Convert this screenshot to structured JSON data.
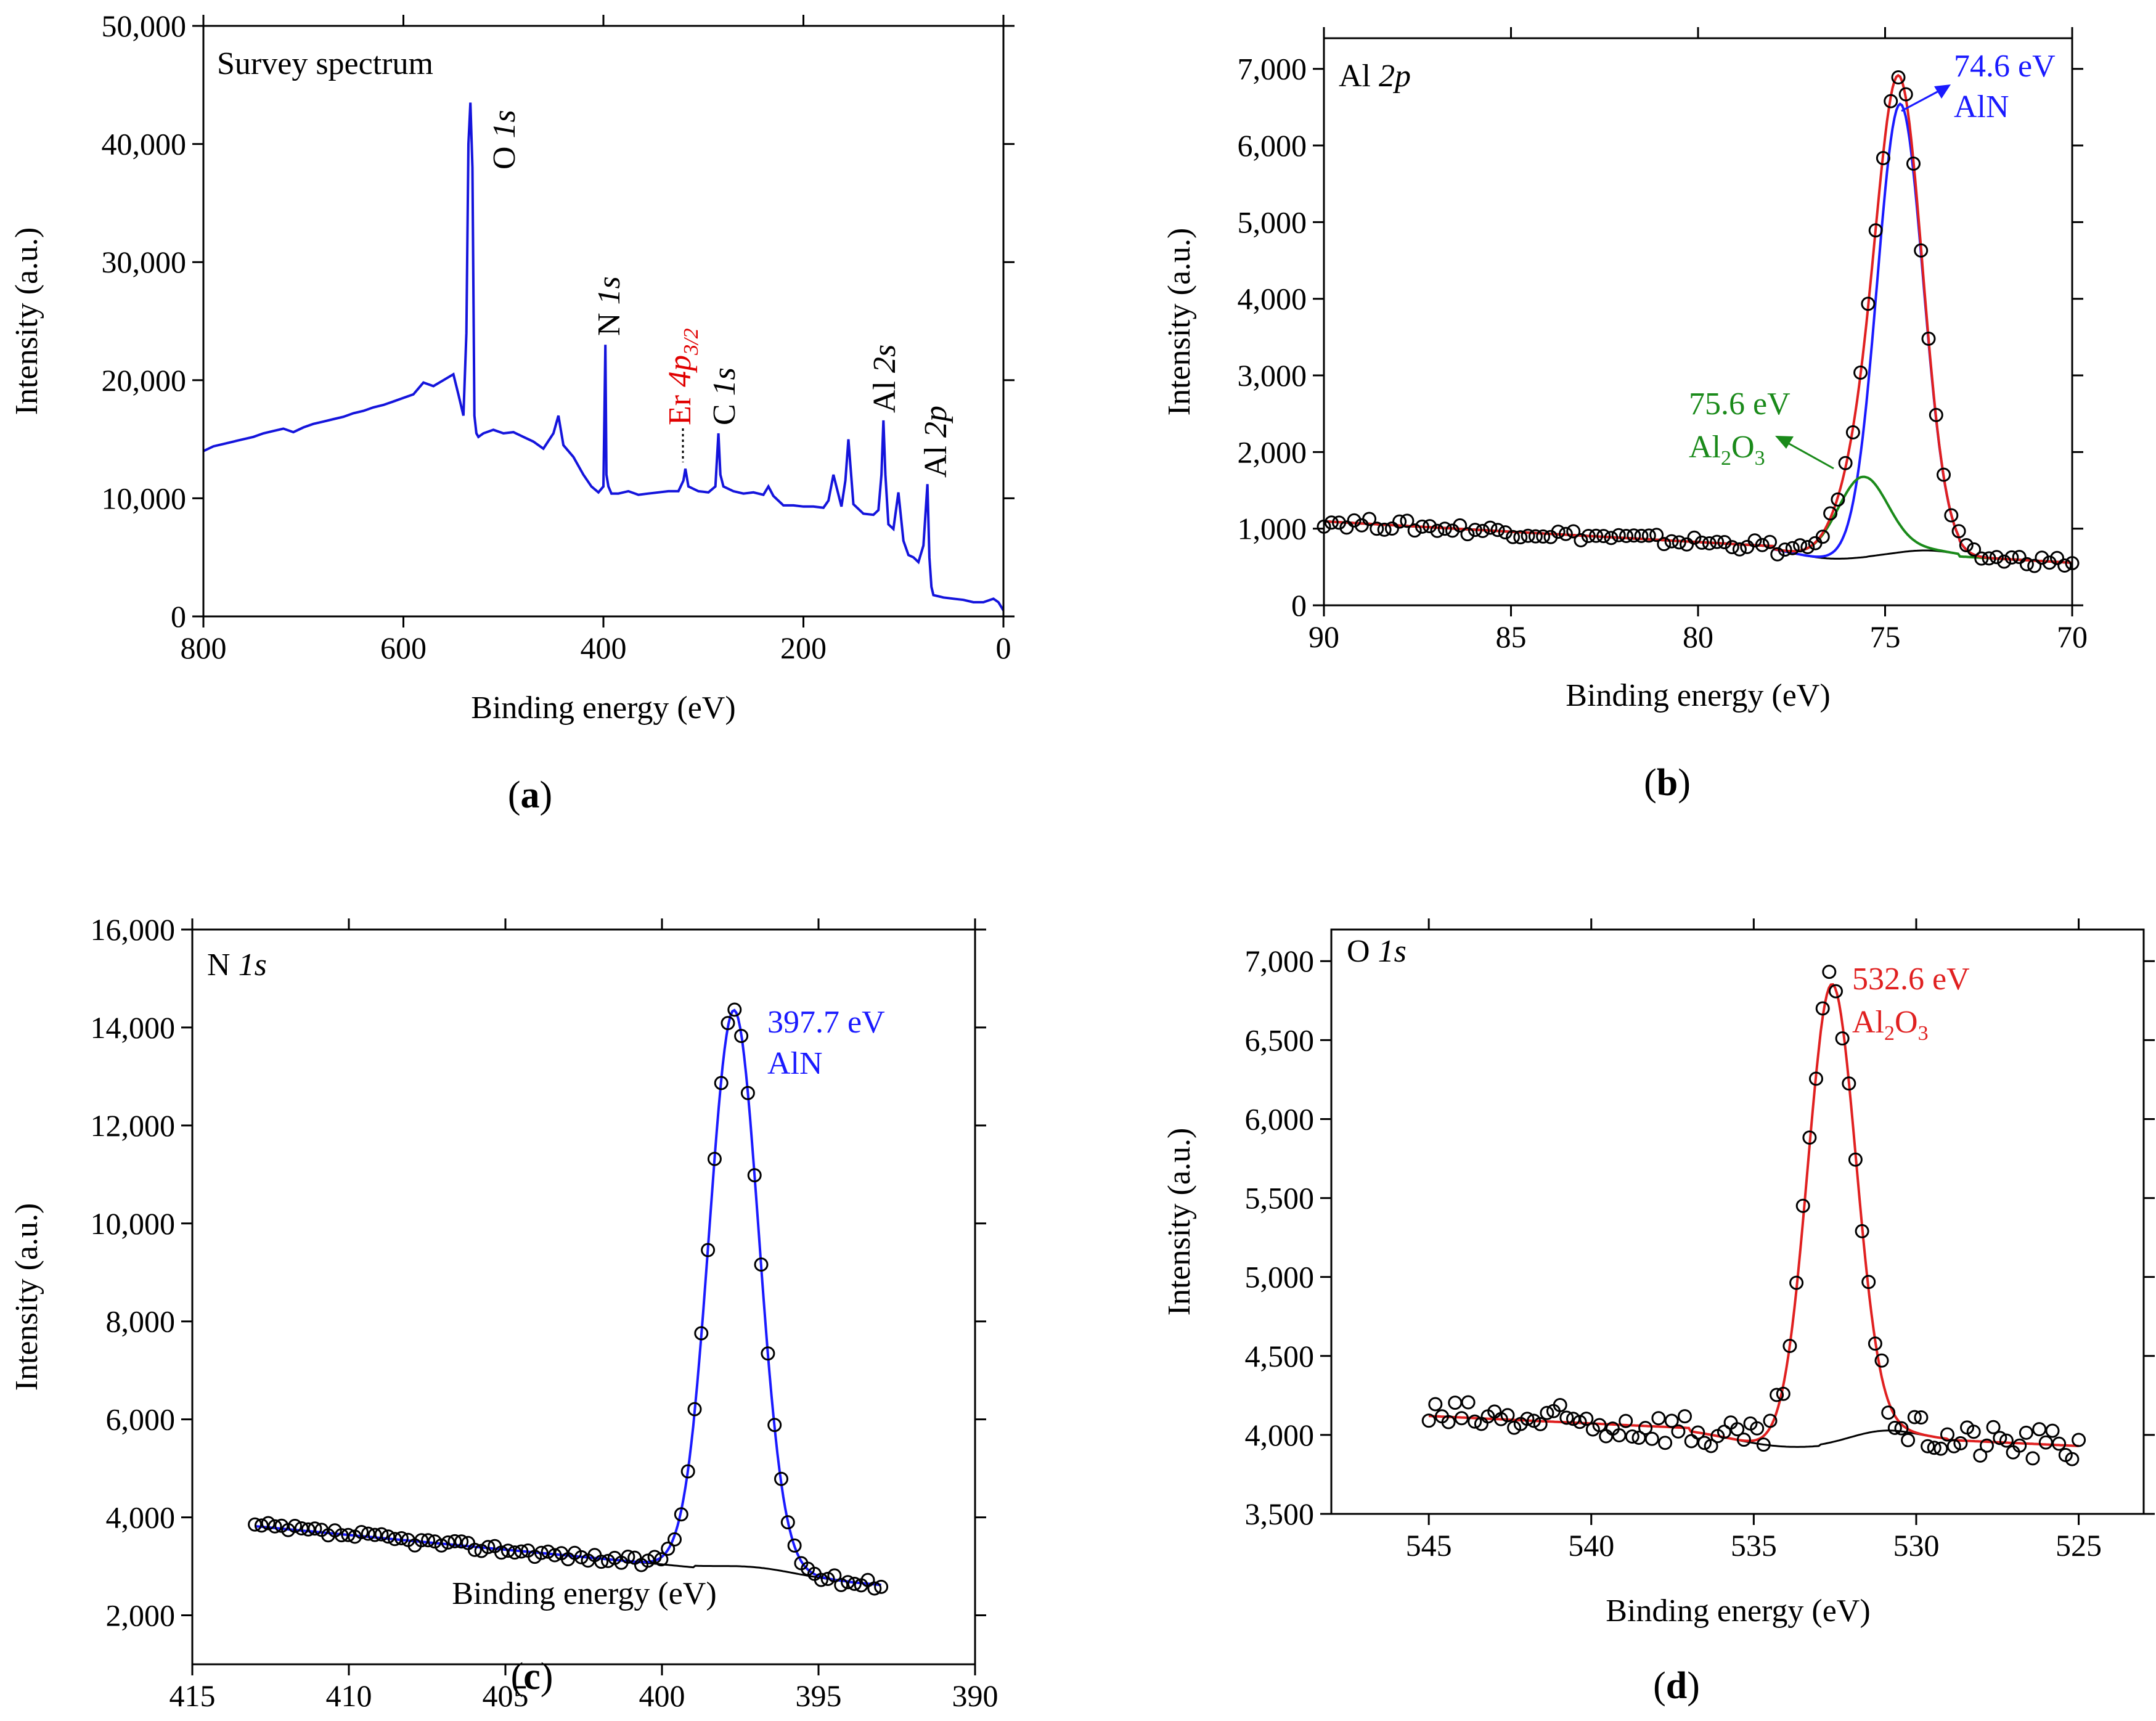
{
  "chart_data": [
    {
      "id": "a",
      "type": "line",
      "panel_label": "(a)",
      "title": "Survey spectrum",
      "xlabel": "Binding energy (eV)",
      "ylabel": "Intensity (a.u.)",
      "xlim": [
        800,
        0
      ],
      "ylim": [
        0,
        50000
      ],
      "xticks": [
        800,
        600,
        400,
        200,
        0
      ],
      "xtick_labels": [
        "800",
        "600",
        "400",
        "200",
        "0"
      ],
      "yticks": [
        0,
        10000,
        20000,
        30000,
        40000,
        50000
      ],
      "ytick_labels": [
        "0",
        "10,000",
        "20,000",
        "30,000",
        "40,000",
        "50,000"
      ],
      "series": [
        {
          "name": "Survey",
          "color": "#1414dc",
          "x": [
            800,
            790,
            780,
            770,
            760,
            750,
            740,
            730,
            720,
            710,
            700,
            690,
            680,
            670,
            660,
            650,
            640,
            630,
            620,
            610,
            600,
            590,
            580,
            570,
            560,
            550,
            545,
            540,
            537,
            535,
            533,
            531,
            529,
            527,
            525,
            520,
            510,
            500,
            490,
            480,
            470,
            460,
            450,
            445,
            440,
            430,
            420,
            412,
            405,
            400,
            398,
            397,
            395,
            392,
            385,
            375,
            365,
            355,
            345,
            335,
            325,
            320,
            318,
            315,
            305,
            295,
            288,
            285,
            283,
            280,
            270,
            260,
            250,
            240,
            235,
            230,
            220,
            210,
            200,
            190,
            180,
            175,
            170,
            162,
            158,
            155,
            150,
            140,
            130,
            125,
            122,
            120,
            118,
            115,
            110,
            105,
            100,
            95,
            90,
            85,
            80,
            76,
            74,
            72,
            70,
            60,
            50,
            40,
            30,
            20,
            10,
            5,
            0
          ],
          "y": [
            14000,
            14400,
            14600,
            14800,
            15000,
            15200,
            15500,
            15700,
            15900,
            15600,
            16000,
            16300,
            16500,
            16700,
            16900,
            17200,
            17400,
            17700,
            17900,
            18200,
            18500,
            18800,
            19800,
            19500,
            20000,
            20500,
            18800,
            17000,
            24000,
            40000,
            43500,
            38000,
            17000,
            15500,
            15200,
            15500,
            15800,
            15500,
            15600,
            15200,
            14800,
            14200,
            15500,
            17000,
            14500,
            13500,
            12000,
            11000,
            10500,
            11000,
            23000,
            12000,
            11000,
            10400,
            10400,
            10600,
            10300,
            10400,
            10500,
            10600,
            10600,
            11500,
            12500,
            11000,
            10600,
            10500,
            11000,
            15500,
            12000,
            11000,
            10600,
            10400,
            10500,
            10300,
            11000,
            10200,
            9400,
            9400,
            9300,
            9300,
            9200,
            9800,
            12000,
            9300,
            11500,
            15000,
            9500,
            8700,
            8600,
            9000,
            12000,
            16600,
            12000,
            7800,
            7400,
            10500,
            6400,
            5200,
            5000,
            4600,
            6000,
            11200,
            5000,
            2500,
            1800,
            1600,
            1500,
            1400,
            1200,
            1200,
            1500,
            1200,
            500
          ]
        }
      ],
      "annotations": [
        {
          "text": "O 1s",
          "color": "#000000"
        },
        {
          "text": "N 1s",
          "color": "#000000"
        },
        {
          "text": "Er 4p3/2",
          "color": "#e00000"
        },
        {
          "text": "C 1s",
          "color": "#000000"
        },
        {
          "text": "Al 2s",
          "color": "#000000"
        },
        {
          "text": "Al 2p",
          "color": "#000000"
        }
      ]
    },
    {
      "id": "b",
      "type": "line",
      "panel_label": "(b)",
      "title": "Al 2p",
      "xlabel": "Binding energy (eV)",
      "ylabel": "Intensity (a.u.)",
      "xlim": [
        90,
        70
      ],
      "ylim": [
        0,
        7400
      ],
      "xticks": [
        90,
        85,
        80,
        75,
        70
      ],
      "xtick_labels": [
        "90",
        "85",
        "80",
        "75",
        "70"
      ],
      "yticks": [
        0,
        1000,
        2000,
        3000,
        4000,
        5000,
        6000,
        7000
      ],
      "ytick_labels": [
        "0",
        "1,000",
        "2,000",
        "3,000",
        "4,000",
        "5,000",
        "6,000",
        "7,000"
      ],
      "series": [
        {
          "name": "Raw",
          "style": "markers",
          "color": "#000000",
          "x": [],
          "y": []
        },
        {
          "name": "Envelope",
          "color": "#e02020",
          "peak_center": 74.6,
          "peak_height": 6250,
          "fwhm": 1.5
        },
        {
          "name": "AlN",
          "color": "#1a1aff",
          "peak_center": 74.6,
          "peak_height": 5850,
          "fwhm": 1.45
        },
        {
          "name": "Al2O3",
          "color": "#1a8a1a",
          "peak_center": 75.6,
          "peak_height": 1050,
          "fwhm": 1.6
        },
        {
          "name": "Background",
          "color": "#000000"
        }
      ],
      "annotations": [
        {
          "text_1": "74.6 eV",
          "text_2": "AlN",
          "color": "#1a1aff"
        },
        {
          "text_1": "75.6 eV",
          "text_2": "Al2O3",
          "color": "#1a8a1a"
        }
      ]
    },
    {
      "id": "c",
      "type": "line",
      "panel_label": "(c)",
      "title": "N 1s",
      "xlabel": "Binding energy (eV)",
      "ylabel": "Intensity (a.u.)",
      "xlim": [
        415,
        390
      ],
      "ylim": [
        1000,
        16000
      ],
      "xticks": [
        415,
        410,
        405,
        400,
        395,
        390
      ],
      "xtick_labels": [
        "415",
        "410",
        "405",
        "400",
        "395",
        "390"
      ],
      "yticks": [
        2000,
        4000,
        6000,
        8000,
        10000,
        12000,
        14000,
        16000
      ],
      "ytick_labels": [
        "2,000",
        "4,000",
        "6,000",
        "8,000",
        "10,000",
        "12,000",
        "14,000",
        "16,000"
      ],
      "series": [
        {
          "name": "Raw",
          "style": "markers",
          "color": "#000000"
        },
        {
          "name": "AlN",
          "color": "#1a1aff",
          "peak_center": 397.7,
          "peak_height": 11300,
          "fwhm": 1.8
        },
        {
          "name": "Background",
          "color": "#000000"
        }
      ],
      "annotations": [
        {
          "text_1": "397.7 eV",
          "text_2": "AlN",
          "color": "#1a1aff"
        }
      ]
    },
    {
      "id": "d",
      "type": "line",
      "panel_label": "(d)",
      "title": "O 1s",
      "xlabel": "Binding energy (eV)",
      "ylabel": "Intensity (a.u.)",
      "xlim": [
        548,
        523
      ],
      "ylim": [
        3500,
        7200
      ],
      "xticks": [
        545,
        540,
        535,
        530,
        525
      ],
      "xtick_labels": [
        "545",
        "540",
        "535",
        "530",
        "525"
      ],
      "yticks": [
        3500,
        4000,
        4500,
        5000,
        5500,
        6000,
        6500,
        7000
      ],
      "ytick_labels": [
        "3,500",
        "4,000",
        "4,500",
        "5,000",
        "5,500",
        "6,000",
        "6,500",
        "7,000"
      ],
      "series": [
        {
          "name": "Raw",
          "style": "markers",
          "color": "#000000"
        },
        {
          "name": "Al2O3",
          "color": "#e02020",
          "peak_center": 532.6,
          "peak_height": 2850,
          "fwhm": 1.75
        },
        {
          "name": "Background",
          "color": "#000000"
        }
      ],
      "annotations": [
        {
          "text_1": "532.6 eV",
          "text_2": "Al2O3",
          "color": "#e02020"
        }
      ]
    }
  ]
}
